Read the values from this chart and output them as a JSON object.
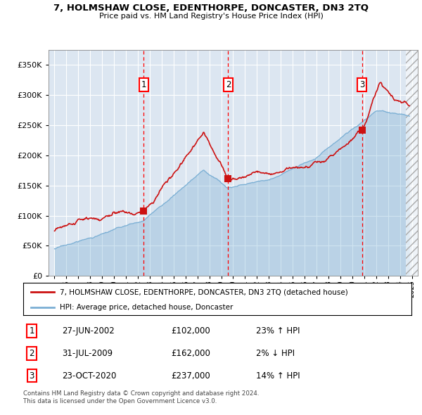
{
  "title": "7, HOLMSHAW CLOSE, EDENTHORPE, DONCASTER, DN3 2TQ",
  "subtitle": "Price paid vs. HM Land Registry's House Price Index (HPI)",
  "legend_line1": "7, HOLMSHAW CLOSE, EDENTHORPE, DONCASTER, DN3 2TQ (detached house)",
  "legend_line2": "HPI: Average price, detached house, Doncaster",
  "footnote1": "Contains HM Land Registry data © Crown copyright and database right 2024.",
  "footnote2": "This data is licensed under the Open Government Licence v3.0.",
  "transactions": [
    {
      "num": 1,
      "date": "27-JUN-2002",
      "price": 102000,
      "pct": "23%",
      "dir": "↑",
      "x": 2002.49
    },
    {
      "num": 2,
      "date": "31-JUL-2009",
      "price": 162000,
      "pct": "2%",
      "dir": "↓",
      "x": 2009.58
    },
    {
      "num": 3,
      "date": "23-OCT-2020",
      "price": 237000,
      "pct": "14%",
      "dir": "↑",
      "x": 2020.81
    }
  ],
  "hpi_color": "#7bafd4",
  "price_color": "#cc1111",
  "bg_color": "#dce6f1",
  "xlim": [
    1994.5,
    2025.5
  ],
  "ylim": [
    0,
    375000
  ],
  "yticks": [
    0,
    50000,
    100000,
    150000,
    200000,
    250000,
    300000,
    350000
  ],
  "xticks": [
    1995,
    1996,
    1997,
    1998,
    1999,
    2000,
    2001,
    2002,
    2003,
    2004,
    2005,
    2006,
    2007,
    2008,
    2009,
    2010,
    2011,
    2012,
    2013,
    2014,
    2015,
    2016,
    2017,
    2018,
    2019,
    2020,
    2021,
    2022,
    2023,
    2024,
    2025
  ]
}
